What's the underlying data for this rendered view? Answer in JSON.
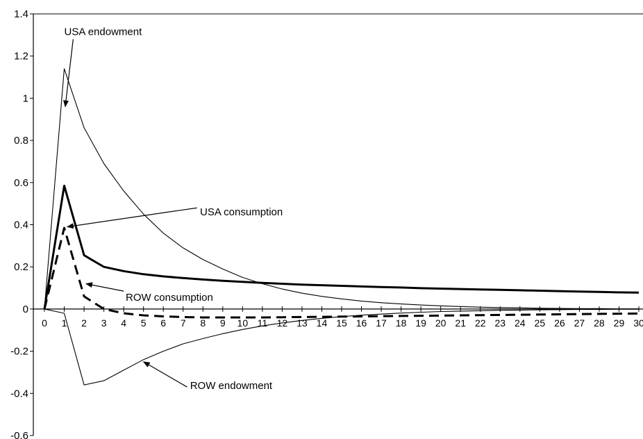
{
  "chart_data": {
    "type": "line",
    "title": "",
    "xlabel": "",
    "ylabel": "",
    "ylim": [
      -0.6,
      1.4
    ],
    "xlim": [
      0,
      30
    ],
    "yticks": [
      "1.4",
      "1.2",
      "1",
      "0.8",
      "0.6",
      "0.4",
      "0.2",
      "0",
      "-0.2",
      "-0.4",
      "-0.6"
    ],
    "xticks": [
      "0",
      "1",
      "2",
      "3",
      "4",
      "5",
      "6",
      "7",
      "8",
      "9",
      "10",
      "11",
      "12",
      "13",
      "14",
      "15",
      "16",
      "17",
      "18",
      "19",
      "20",
      "21",
      "22",
      "23",
      "24",
      "25",
      "26",
      "27",
      "28",
      "29",
      "30"
    ],
    "x": [
      0,
      1,
      2,
      3,
      4,
      5,
      6,
      7,
      8,
      9,
      10,
      11,
      12,
      13,
      14,
      15,
      16,
      17,
      18,
      19,
      20,
      21,
      22,
      23,
      24,
      25,
      26,
      27,
      28,
      29,
      30
    ],
    "grid": false,
    "series": [
      {
        "name": "USA endowment",
        "style": "thin",
        "color": "#000000",
        "values": [
          0,
          1.14,
          0.86,
          0.69,
          0.56,
          0.45,
          0.36,
          0.29,
          0.235,
          0.19,
          0.15,
          0.12,
          0.095,
          0.075,
          0.06,
          0.048,
          0.038,
          0.03,
          0.024,
          0.019,
          0.015,
          0.012,
          0.009,
          0.007,
          0.006,
          0.004,
          0.003,
          0.002,
          0.002,
          0.001,
          0.001
        ]
      },
      {
        "name": "USA consumption",
        "style": "thick",
        "color": "#000000",
        "values": [
          0,
          0.585,
          0.255,
          0.2,
          0.18,
          0.165,
          0.155,
          0.147,
          0.14,
          0.134,
          0.129,
          0.124,
          0.12,
          0.116,
          0.113,
          0.11,
          0.107,
          0.104,
          0.102,
          0.099,
          0.097,
          0.095,
          0.093,
          0.091,
          0.089,
          0.087,
          0.085,
          0.083,
          0.081,
          0.079,
          0.078
        ]
      },
      {
        "name": "ROW consumption",
        "style": "dashed",
        "color": "#000000",
        "values": [
          0,
          0.385,
          0.06,
          0.0,
          -0.02,
          -0.03,
          -0.035,
          -0.038,
          -0.04,
          -0.04,
          -0.04,
          -0.04,
          -0.039,
          -0.038,
          -0.037,
          -0.036,
          -0.035,
          -0.034,
          -0.033,
          -0.032,
          -0.031,
          -0.03,
          -0.029,
          -0.028,
          -0.027,
          -0.026,
          -0.025,
          -0.024,
          -0.023,
          -0.022,
          -0.021
        ]
      },
      {
        "name": "ROW endowment",
        "style": "thin",
        "color": "#000000",
        "values": [
          0,
          -0.02,
          -0.36,
          -0.34,
          -0.29,
          -0.24,
          -0.2,
          -0.165,
          -0.14,
          -0.117,
          -0.097,
          -0.08,
          -0.066,
          -0.054,
          -0.044,
          -0.036,
          -0.029,
          -0.024,
          -0.019,
          -0.015,
          -0.012,
          -0.01,
          -0.008,
          -0.006,
          -0.005,
          -0.004,
          -0.003,
          -0.002,
          -0.002,
          -0.001,
          -0.001
        ]
      }
    ],
    "annotations": [
      {
        "text": "USA endowment",
        "from_x": 1.45,
        "from_y": 1.28,
        "to_x": 1.05,
        "to_y": 0.96
      },
      {
        "text": "USA consumption",
        "from_x": 7.7,
        "from_y": 0.48,
        "to_x": 1.15,
        "to_y": 0.39
      },
      {
        "text": "ROW consumption",
        "from_x": 4.0,
        "from_y": 0.085,
        "to_x": 2.1,
        "to_y": 0.12
      },
      {
        "text": "ROW endowment",
        "from_x": 7.2,
        "from_y": -0.37,
        "to_x": 5.0,
        "to_y": -0.25
      }
    ]
  }
}
